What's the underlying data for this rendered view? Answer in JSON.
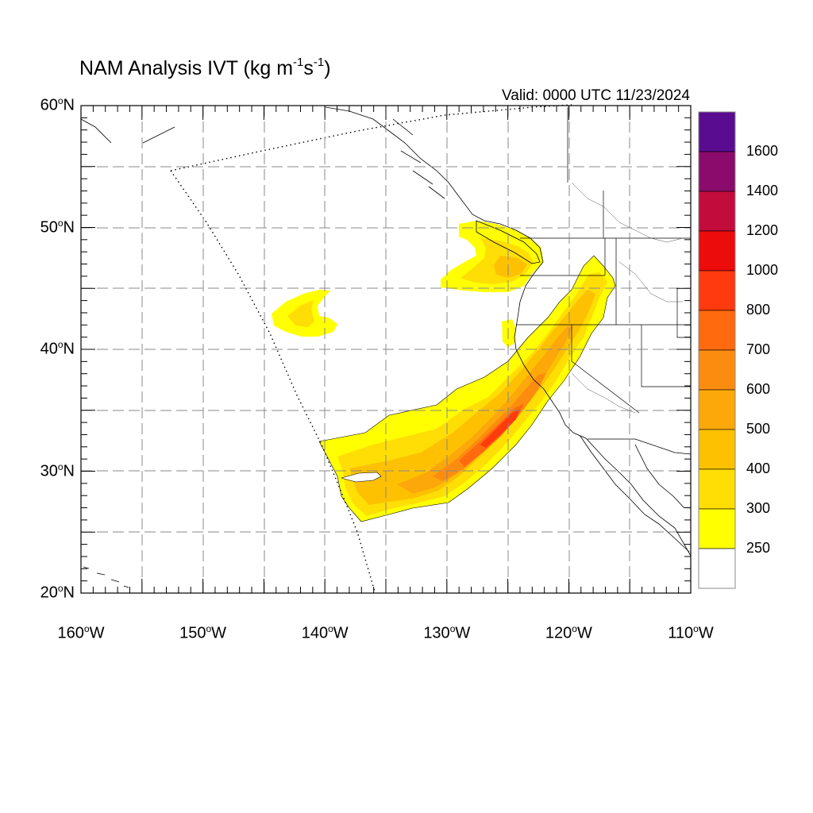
{
  "header": {
    "title_main": "NAM Analysis IVT (kg m",
    "title_sup1": "-1",
    "title_mid": "s",
    "title_sup2": "-1",
    "title_end": ")",
    "valid": "Valid: 0000 UTC 11/23/2024"
  },
  "axes": {
    "lat_labels": [
      {
        "deg": "60",
        "sup": "o",
        "hemi": "N"
      },
      {
        "deg": "50",
        "sup": "o",
        "hemi": "N"
      },
      {
        "deg": "40",
        "sup": "o",
        "hemi": "N"
      },
      {
        "deg": "30",
        "sup": "o",
        "hemi": "N"
      },
      {
        "deg": "20",
        "sup": "o",
        "hemi": "N"
      }
    ],
    "lon_labels": [
      {
        "deg": "160",
        "sup": "o",
        "hemi": "W"
      },
      {
        "deg": "150",
        "sup": "o",
        "hemi": "W"
      },
      {
        "deg": "140",
        "sup": "o",
        "hemi": "W"
      },
      {
        "deg": "130",
        "sup": "o",
        "hemi": "W"
      },
      {
        "deg": "120",
        "sup": "o",
        "hemi": "W"
      },
      {
        "deg": "110",
        "sup": "o",
        "hemi": "W"
      }
    ],
    "lon_range": [
      -160,
      -110
    ],
    "lat_range": [
      20,
      60
    ],
    "grid_interval_deg": 5
  },
  "colorbar": {
    "labels": [
      "1600",
      "1400",
      "1200",
      "1000",
      "800",
      "700",
      "600",
      "500",
      "400",
      "300",
      "250"
    ],
    "colors": [
      "#5a0c91",
      "#8a0b6b",
      "#c20c3c",
      "#ec0c0c",
      "#ff3a0e",
      "#ff6a0e",
      "#fc8c10",
      "#fda80a",
      "#fdc102",
      "#fede05",
      "#ffff00",
      "#ffffff"
    ]
  },
  "ivt_field": {
    "description_units": "kg m-1 s-1",
    "max_region": "off central California coast near 34N 125W",
    "colors": {
      "c250": "#ffff00",
      "c300": "#fede05",
      "c400": "#fdc102",
      "c500": "#fda80a",
      "c600": "#fc8c10",
      "c700": "#ff6a0e",
      "c800": "#ff3a0e"
    }
  }
}
